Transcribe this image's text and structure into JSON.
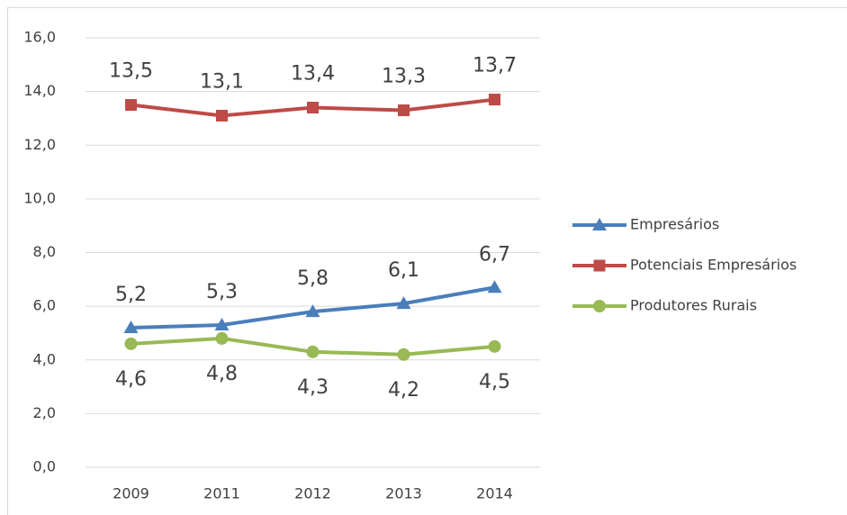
{
  "chart_data": {
    "type": "line",
    "categories": [
      "2009",
      "2011",
      "2012",
      "2013",
      "2014"
    ],
    "series": [
      {
        "name": "Empresários",
        "color": "#4a7ebb",
        "marker": "triangle",
        "values": [
          5.2,
          5.3,
          5.8,
          6.1,
          6.7
        ],
        "value_labels": [
          "5,2",
          "5,3",
          "5,8",
          "6,1",
          "6,7"
        ]
      },
      {
        "name": "Potenciais Empresários",
        "color": "#be4b48",
        "marker": "square",
        "values": [
          13.5,
          13.1,
          13.4,
          13.3,
          13.7
        ],
        "value_labels": [
          "13,5",
          "13,1",
          "13,4",
          "13,3",
          "13,7"
        ]
      },
      {
        "name": "Produtores Rurais",
        "color": "#98b954",
        "marker": "circle",
        "values": [
          4.6,
          4.8,
          4.3,
          4.2,
          4.5
        ],
        "value_labels": [
          "4,6",
          "4,8",
          "4,3",
          "4,2",
          "4,5"
        ]
      }
    ],
    "ylim": [
      0,
      16
    ],
    "yticks": [
      {
        "value": 0,
        "label": "0,0"
      },
      {
        "value": 2,
        "label": "2,0"
      },
      {
        "value": 4,
        "label": "4,0"
      },
      {
        "value": 6,
        "label": "6,0"
      },
      {
        "value": 8,
        "label": "8,0"
      },
      {
        "value": 10,
        "label": "10,0"
      },
      {
        "value": 12,
        "label": "12,0"
      },
      {
        "value": 14,
        "label": "14,0"
      },
      {
        "value": 16,
        "label": "16,0"
      }
    ],
    "grid": true,
    "legend": "right"
  }
}
